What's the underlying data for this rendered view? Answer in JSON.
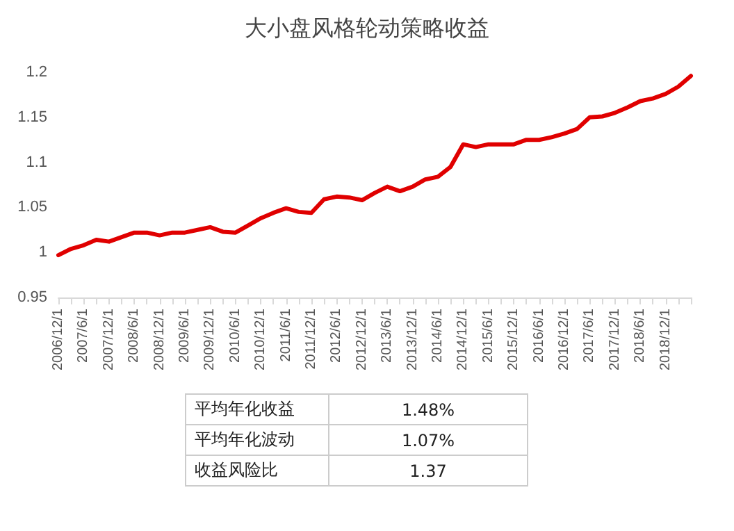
{
  "chart_data": {
    "type": "line",
    "title": "大小盘风格轮动策略收益",
    "categories": [
      "2006/12/1",
      null,
      "2007/6/1",
      null,
      "2007/12/1",
      null,
      "2008/6/1",
      null,
      "2008/12/1",
      null,
      "2009/6/1",
      null,
      "2009/12/1",
      null,
      "2010/6/1",
      null,
      "2010/12/1",
      null,
      "2011/6/1",
      null,
      "2011/12/1",
      null,
      "2012/6/1",
      null,
      "2012/12/1",
      null,
      "2013/6/1",
      null,
      "2013/12/1",
      null,
      "2014/6/1",
      null,
      "2014/12/1",
      null,
      "2015/6/1",
      null,
      "2015/12/1",
      null,
      "2016/6/1",
      null,
      "2016/12/1",
      null,
      "2017/6/1",
      null,
      "2017/12/1",
      null,
      "2018/6/1",
      null,
      "2018/12/1",
      null,
      null
    ],
    "series": [
      {
        "color": "#e00000",
        "values": [
          0.997,
          1.004,
          1.008,
          1.014,
          1.012,
          1.017,
          1.022,
          1.022,
          1.019,
          1.022,
          1.022,
          1.025,
          1.028,
          1.023,
          1.022,
          1.03,
          1.038,
          1.044,
          1.049,
          1.045,
          1.044,
          1.059,
          1.062,
          1.061,
          1.058,
          1.066,
          1.073,
          1.068,
          1.073,
          1.081,
          1.084,
          1.095,
          1.12,
          1.117,
          1.12,
          1.12,
          1.12,
          1.125,
          1.125,
          1.128,
          1.132,
          1.137,
          1.15,
          1.151,
          1.155,
          1.161,
          1.168,
          1.171,
          1.176,
          1.184,
          1.196
        ]
      }
    ],
    "ylim": [
      0.95,
      1.2
    ],
    "yticks": [
      0.95,
      1,
      1.05,
      1.1,
      1.15,
      1.2
    ],
    "grid": false,
    "marker": "none",
    "line_style": "solid",
    "annotations": [
      "平均年化收益",
      "1.48%",
      "平均年化波动",
      "1.07%",
      "收益风险比",
      "1.37"
    ]
  }
}
